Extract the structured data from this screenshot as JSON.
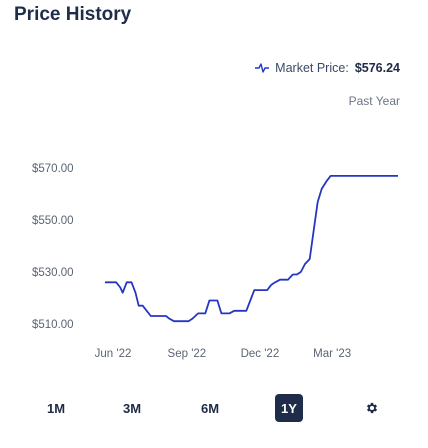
{
  "page": {
    "title": "Price History"
  },
  "market": {
    "label": "Market Price:",
    "value": "$576.24",
    "icon": "price-trend-icon"
  },
  "range_label": "Past Year",
  "range_buttons": [
    {
      "label": "1M",
      "active": false
    },
    {
      "label": "3M",
      "active": false
    },
    {
      "label": "6M",
      "active": false
    },
    {
      "label": "1Y",
      "active": true
    }
  ],
  "settings_icon": "gear-icon",
  "colors": {
    "line": "#2437c2",
    "title": "#1f2d4a",
    "active_button": "#1f2d4a"
  },
  "chart_data": {
    "type": "line",
    "title": "",
    "xlabel": "",
    "ylabel": "",
    "ylim": [
      508,
      577
    ],
    "xlim": [
      "2022-05-22",
      "2023-05-22"
    ],
    "y_ticks": [
      {
        "value": 510,
        "label": "$510.00"
      },
      {
        "value": 530,
        "label": "$530.00"
      },
      {
        "value": 550,
        "label": "$550.00"
      },
      {
        "value": 570,
        "label": "$570.00"
      }
    ],
    "x_ticks": [
      {
        "value": "2022-06-01",
        "label": "Jun '22"
      },
      {
        "value": "2022-09-01",
        "label": "Sep '22"
      },
      {
        "value": "2022-12-01",
        "label": "Dec '22"
      },
      {
        "value": "2023-03-01",
        "label": "Mar '23"
      }
    ],
    "grid": false,
    "legend": "none",
    "series": [
      {
        "x": [
          "2022-05-22",
          "2022-06-05",
          "2022-06-10",
          "2022-06-13",
          "2022-06-18",
          "2022-06-24",
          "2022-06-29",
          "2022-07-03",
          "2022-07-08",
          "2022-07-13",
          "2022-07-18",
          "2022-07-25",
          "2022-08-01",
          "2022-08-06",
          "2022-08-10",
          "2022-08-16",
          "2022-08-22",
          "2022-08-29",
          "2022-09-03",
          "2022-09-08",
          "2022-09-15",
          "2022-09-24",
          "2022-09-29",
          "2022-10-04",
          "2022-10-09",
          "2022-10-14",
          "2022-10-19",
          "2022-10-24",
          "2022-10-30",
          "2022-11-05",
          "2022-11-09",
          "2022-11-14",
          "2022-11-19",
          "2022-11-24",
          "2022-11-30",
          "2022-12-05",
          "2022-12-10",
          "2022-12-15",
          "2022-12-20",
          "2022-12-26",
          "2022-12-31",
          "2023-01-05",
          "2023-01-11",
          "2023-01-16",
          "2023-01-21",
          "2023-01-26",
          "2023-02-01",
          "2023-02-06",
          "2023-02-11",
          "2023-02-16",
          "2023-02-22",
          "2023-02-27",
          "2023-03-04",
          "2023-03-11",
          "2023-03-16",
          "2023-03-21",
          "2023-03-26",
          "2023-04-01",
          "2023-04-06",
          "2023-04-11",
          "2023-04-16",
          "2023-04-21",
          "2023-04-24",
          "2023-04-29",
          "2023-05-04",
          "2023-05-07",
          "2023-05-10",
          "2023-05-22"
        ],
        "values": [
          526,
          526,
          524,
          522,
          526,
          526,
          522,
          517,
          517,
          515,
          513,
          513,
          513,
          513,
          512,
          511,
          511,
          511,
          511,
          512,
          514,
          514,
          519,
          519,
          519,
          514,
          514,
          514,
          515,
          515,
          515,
          515,
          519,
          523,
          523,
          523,
          523,
          525,
          526,
          527,
          527,
          527,
          529,
          529,
          530,
          533,
          535,
          546,
          557,
          562,
          565,
          567,
          567,
          567,
          567,
          567,
          567,
          567,
          567,
          567,
          567,
          567,
          567,
          567,
          567,
          567,
          567,
          567
        ]
      }
    ]
  }
}
